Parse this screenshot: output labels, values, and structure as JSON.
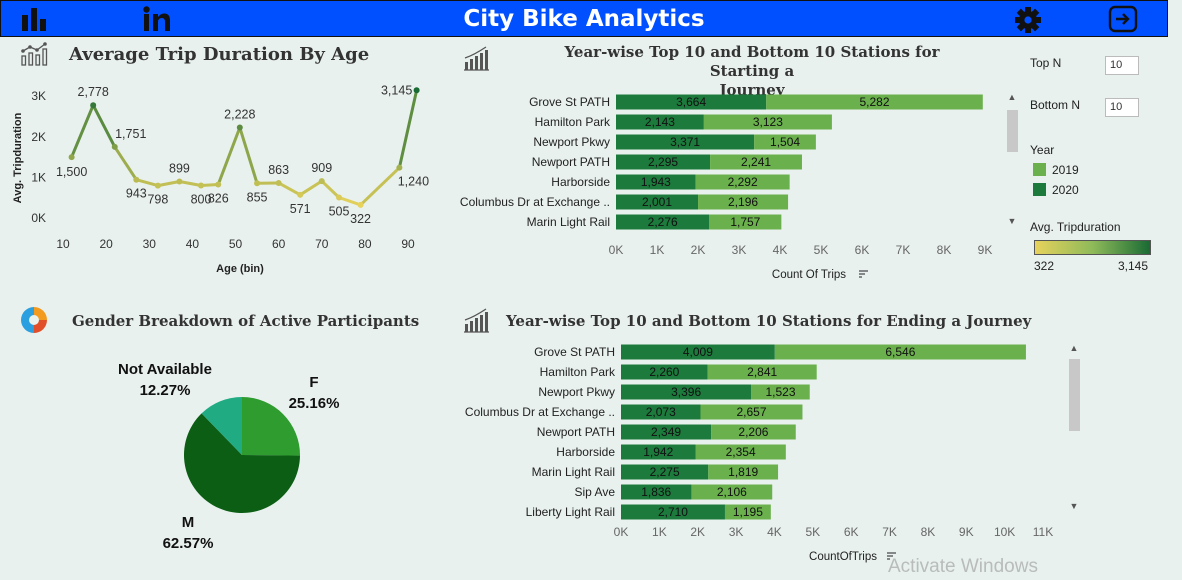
{
  "header": {
    "title": "City Bike Analytics",
    "icons": [
      "bar-chart-icon",
      "linkedin-icon",
      "gear-icon",
      "exit-icon"
    ]
  },
  "age_panel": {
    "title": "Average Trip Duration By Age",
    "icon": "line-chart-icon",
    "chart_data": {
      "type": "line",
      "title": "Average Trip Duration By Age",
      "xlabel": "Age (bin)",
      "ylabel": "Avg. Tripduration",
      "x_ticks": [
        "10",
        "20",
        "30",
        "40",
        "50",
        "60",
        "70",
        "80",
        "90"
      ],
      "y_ticks": [
        "0K",
        "1K",
        "2K",
        "3K"
      ],
      "xlim": [
        10,
        90
      ],
      "ylim": [
        0,
        3300
      ],
      "x": [
        12,
        17,
        22,
        27,
        32,
        37,
        42,
        46,
        51,
        55,
        60,
        65,
        70,
        74,
        79,
        88,
        92
      ],
      "values": [
        1500,
        2778,
        1751,
        943,
        798,
        899,
        800,
        826,
        2228,
        855,
        863,
        571,
        909,
        505,
        322,
        1240,
        3145
      ],
      "labels": [
        "1,500",
        "2,778",
        "1,751",
        "943",
        "798",
        "899",
        "800",
        "826",
        "2,228",
        "855",
        "863",
        "571",
        "909",
        "505",
        "322",
        "1,240",
        "3,145"
      ],
      "color_scale": [
        "#e7d25c",
        "#1a6b34"
      ]
    }
  },
  "start_panel": {
    "title_line1": "Year-wise Top 10 and Bottom 10 Stations for Starting a",
    "title_line2": "Journey",
    "icon": "bar-growth-icon",
    "chart_data": {
      "type": "bar",
      "orientation": "horizontal",
      "stacked": true,
      "categories": [
        "Grove St PATH",
        "Hamilton Park",
        "Newport Pkwy",
        "Newport PATH",
        "Harborside",
        "Columbus Dr at Exchange ..",
        "Marin Light Rail"
      ],
      "series": [
        {
          "name": "2020",
          "values": [
            3664,
            2143,
            3371,
            2295,
            1943,
            2001,
            2276
          ],
          "labels": [
            "3,664",
            "2,143",
            "3,371",
            "2,295",
            "1,943",
            "2,001",
            "2,276"
          ],
          "color": "#1c7a3c"
        },
        {
          "name": "2019",
          "values": [
            5282,
            3123,
            1504,
            2241,
            2292,
            2196,
            1757
          ],
          "labels": [
            "5,282",
            "3,123",
            "1,504",
            "2,241",
            "2,292",
            "2,196",
            "1,757"
          ],
          "color": "#6ab04c"
        }
      ],
      "xlabel": "Count Of Trips",
      "x_ticks": [
        "0K",
        "1K",
        "2K",
        "3K",
        "4K",
        "5K",
        "6K",
        "7K",
        "8K",
        "9K"
      ],
      "xlim": [
        0,
        9000
      ]
    }
  },
  "end_panel": {
    "title": "Year-wise Top 10 and Bottom 10 Stations for Ending a Journey",
    "icon": "bar-growth-icon",
    "chart_data": {
      "type": "bar",
      "orientation": "horizontal",
      "stacked": true,
      "categories": [
        "Grove St PATH",
        "Hamilton Park",
        "Newport Pkwy",
        "Columbus Dr at Exchange ..",
        "Newport PATH",
        "Harborside",
        "Marin Light Rail",
        "Sip Ave",
        "Liberty Light Rail"
      ],
      "series": [
        {
          "name": "2020",
          "values": [
            4009,
            2260,
            3396,
            2073,
            2349,
            1942,
            2275,
            1836,
            2710
          ],
          "labels": [
            "4,009",
            "2,260",
            "3,396",
            "2,073",
            "2,349",
            "1,942",
            "2,275",
            "1,836",
            "2,710"
          ],
          "color": "#1c7a3c"
        },
        {
          "name": "2019",
          "values": [
            6546,
            2841,
            1523,
            2657,
            2206,
            2354,
            1819,
            2106,
            1195
          ],
          "labels": [
            "6,546",
            "2,841",
            "1,523",
            "2,657",
            "2,206",
            "2,354",
            "1,819",
            "2,106",
            "1,195"
          ],
          "color": "#6ab04c"
        }
      ],
      "xlabel": "CountOfTrips",
      "x_ticks": [
        "0K",
        "1K",
        "2K",
        "3K",
        "4K",
        "5K",
        "6K",
        "7K",
        "8K",
        "9K",
        "10K",
        "11K"
      ],
      "xlim": [
        0,
        11000
      ]
    }
  },
  "gender_panel": {
    "title": "Gender Breakdown of Active Participants",
    "icon": "donut-chart-icon",
    "chart_data": {
      "type": "pie",
      "slices": [
        {
          "name": "F",
          "value": 25.16,
          "label": "25.16%",
          "color": "#2e9c2e"
        },
        {
          "name": "M",
          "value": 62.57,
          "label": "62.57%",
          "color": "#0b5e14"
        },
        {
          "name": "Not Available",
          "value": 12.27,
          "label": "12.27%",
          "color": "#20ab83"
        }
      ]
    }
  },
  "controls": {
    "top_n_label": "Top N",
    "top_n_value": "10",
    "bottom_n_label": "Bottom N",
    "bottom_n_value": "10",
    "year_legend_title": "Year",
    "years": [
      {
        "label": "2019",
        "color": "#6ab04c"
      },
      {
        "label": "2020",
        "color": "#1c7a3c"
      }
    ],
    "gradient_title": "Avg. Tripduration",
    "gradient_min": "322",
    "gradient_max": "3,145",
    "gradient_colors": [
      "#e7d25c",
      "#1a6b34"
    ]
  },
  "watermark": "Activate Windows"
}
